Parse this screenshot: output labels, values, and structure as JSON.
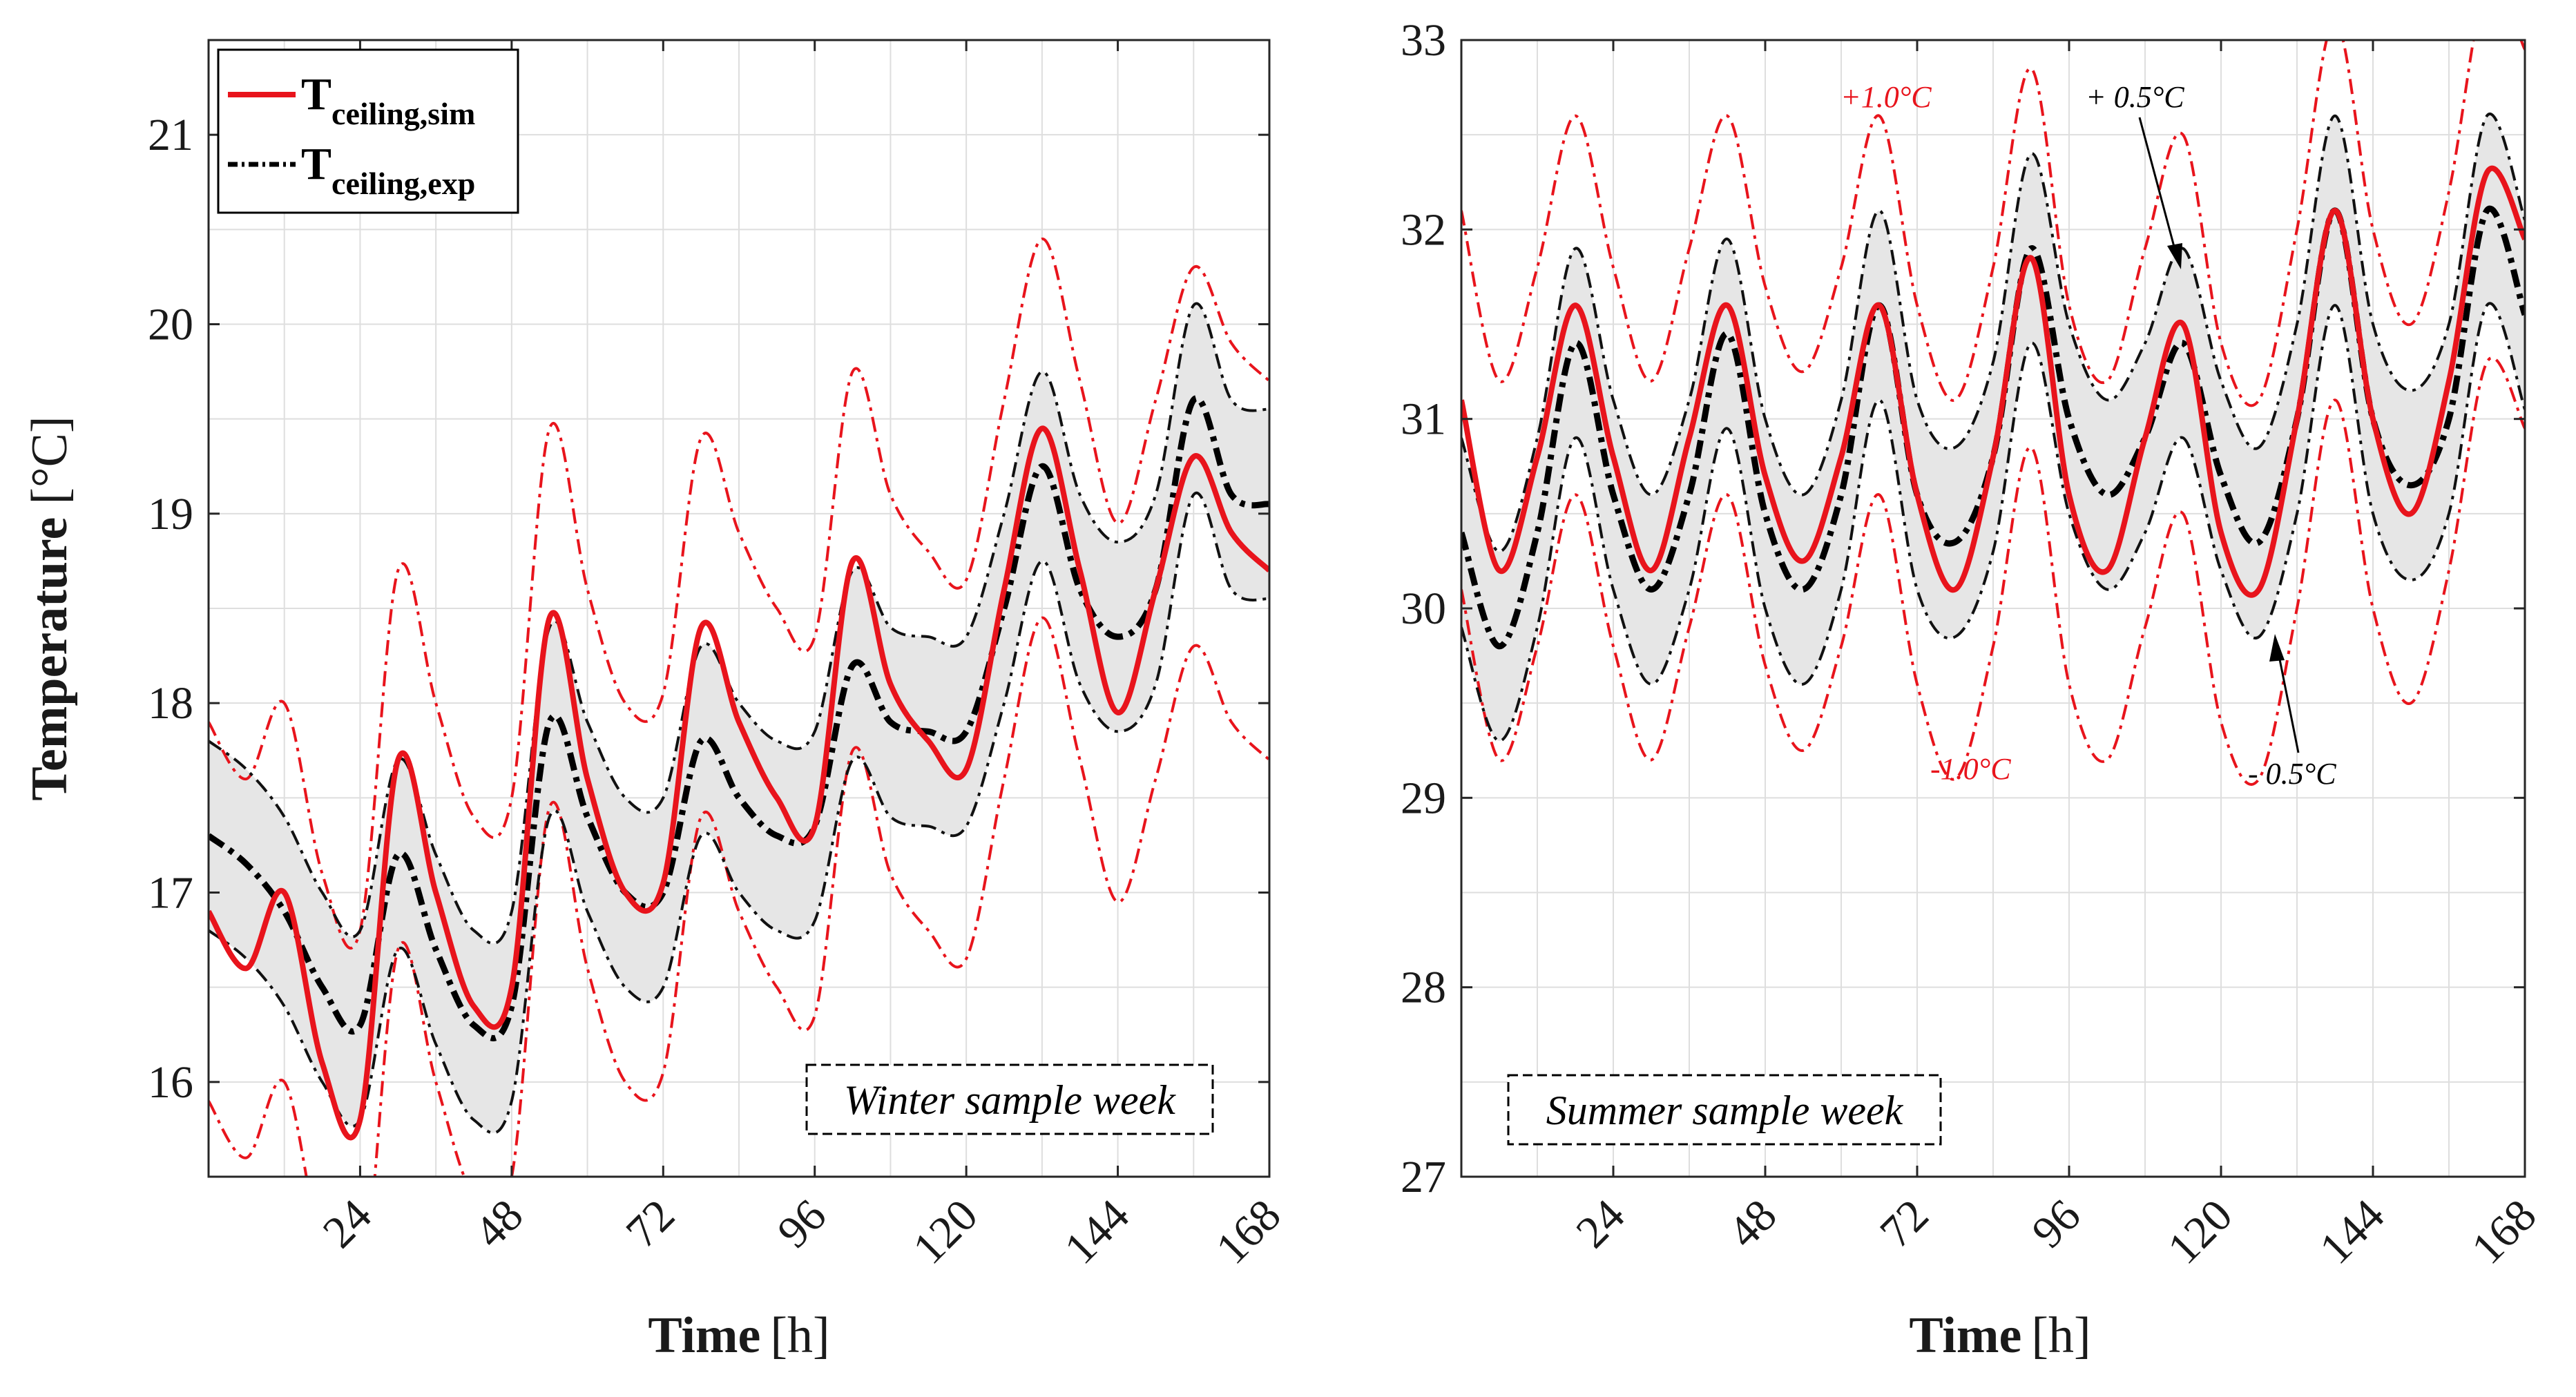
{
  "chart_data": [
    {
      "type": "line",
      "panel": "left",
      "title": "",
      "xlabel": "Time",
      "xlabel_unit": "[h]",
      "ylabel": "Temperature",
      "ylabel_unit": "[°C]",
      "xlim": [
        0,
        168
      ],
      "ylim": [
        15.5,
        21.5
      ],
      "xticks": [
        24,
        48,
        72,
        96,
        120,
        144,
        168
      ],
      "yticks": [
        16,
        17,
        18,
        19,
        20,
        21
      ],
      "grid": true,
      "legend_position": "top-left",
      "legend": [
        {
          "main": "T",
          "sub": "ceiling,sim",
          "style": "solid-red"
        },
        {
          "main": "T",
          "sub": "ceiling,exp",
          "style": "dashdot-black"
        }
      ],
      "sample_label": "Winter sample week",
      "x": [
        0,
        6,
        12,
        18,
        24,
        30,
        36,
        42,
        48,
        54,
        60,
        66,
        72,
        78,
        84,
        90,
        96,
        102,
        108,
        114,
        120,
        126,
        132,
        138,
        144,
        150,
        156,
        162,
        168
      ],
      "series": [
        {
          "name": "T_ceiling,sim",
          "values": [
            16.9,
            16.6,
            17.0,
            16.1,
            15.8,
            17.7,
            17.0,
            16.4,
            16.5,
            18.45,
            17.6,
            17.0,
            17.05,
            18.4,
            17.9,
            17.5,
            17.35,
            18.75,
            18.1,
            17.8,
            17.65,
            18.6,
            19.45,
            18.7,
            17.95,
            18.6,
            19.3,
            18.9,
            18.7
          ]
        },
        {
          "name": "T_ceiling,exp",
          "values": [
            17.3,
            17.15,
            16.9,
            16.5,
            16.3,
            17.2,
            16.7,
            16.3,
            16.4,
            17.9,
            17.4,
            17.0,
            17.0,
            17.8,
            17.5,
            17.3,
            17.35,
            18.2,
            17.9,
            17.85,
            17.85,
            18.5,
            19.25,
            18.6,
            18.35,
            18.6,
            19.6,
            19.1,
            19.05
          ]
        }
      ]
    },
    {
      "type": "line",
      "panel": "right",
      "title": "",
      "xlabel": "Time",
      "xlabel_unit": "[h]",
      "ylabel": "",
      "xlim": [
        0,
        168
      ],
      "ylim": [
        27,
        33
      ],
      "xticks": [
        24,
        48,
        72,
        96,
        120,
        144,
        168
      ],
      "yticks": [
        27,
        28,
        29,
        30,
        31,
        32,
        33
      ],
      "grid": true,
      "sample_label": "Summer sample week",
      "annotations": [
        {
          "text": "+1.0°C",
          "color": "red"
        },
        {
          "text": "+ 0.5°C",
          "color": "black"
        },
        {
          "text": "-1.0°C",
          "color": "red"
        },
        {
          "text": "- 0.5°C",
          "color": "black"
        }
      ],
      "x": [
        0,
        6,
        12,
        18,
        24,
        30,
        36,
        42,
        48,
        54,
        60,
        66,
        72,
        78,
        84,
        90,
        96,
        102,
        108,
        114,
        120,
        126,
        132,
        138,
        144,
        150,
        156,
        162,
        168
      ],
      "series": [
        {
          "name": "T_ceiling,sim",
          "values": [
            31.1,
            30.2,
            30.8,
            31.6,
            30.8,
            30.2,
            30.9,
            31.6,
            30.7,
            30.25,
            30.8,
            31.6,
            30.6,
            30.1,
            30.8,
            31.85,
            30.6,
            30.2,
            30.9,
            31.5,
            30.4,
            30.1,
            31.0,
            32.1,
            31.0,
            30.5,
            31.2,
            32.3,
            31.95
          ]
        },
        {
          "name": "T_ceiling,exp",
          "values": [
            30.4,
            29.8,
            30.4,
            31.4,
            30.6,
            30.1,
            30.6,
            31.45,
            30.5,
            30.1,
            30.6,
            31.6,
            30.6,
            30.35,
            30.8,
            31.9,
            31.0,
            30.6,
            30.9,
            31.4,
            30.7,
            30.35,
            31.0,
            32.1,
            31.0,
            30.65,
            31.0,
            32.1,
            31.55
          ]
        }
      ]
    }
  ]
}
